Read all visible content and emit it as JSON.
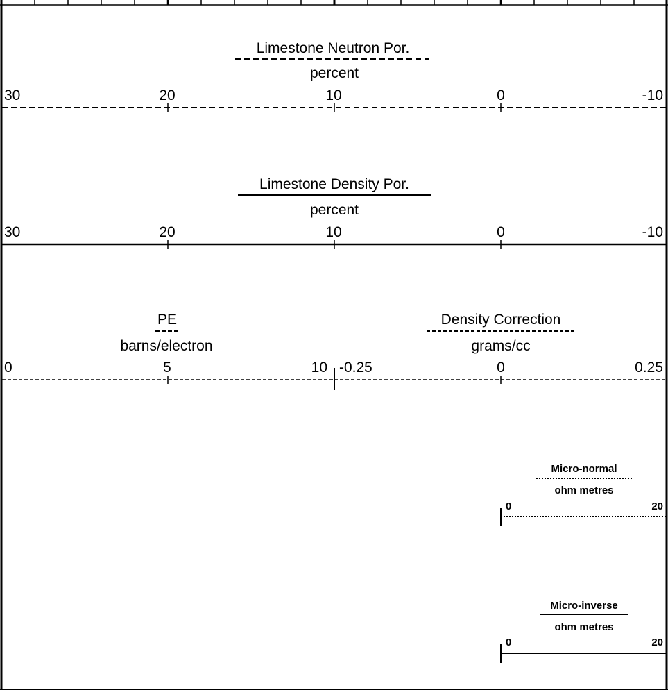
{
  "tracks": {
    "neutron": {
      "title": "Limestone Neutron Por.",
      "unit": "percent",
      "scale": [
        "30",
        "20",
        "10",
        "0",
        "-10"
      ],
      "line_style": "dashed"
    },
    "density": {
      "title": "Limestone Density Por.",
      "unit": "percent",
      "scale": [
        "30",
        "20",
        "10",
        "0",
        "-10"
      ],
      "line_style": "solid"
    },
    "pe": {
      "title": "PE",
      "unit": "barns/electron",
      "scale": [
        "0",
        "5",
        "10"
      ],
      "line_style": "short-dashed"
    },
    "density_correction": {
      "title": "Density Correction",
      "unit": "grams/cc",
      "scale": [
        "-0.25",
        "0",
        "0.25"
      ],
      "line_style": "short-dashed"
    },
    "micro_normal": {
      "title": "Micro-normal",
      "unit": "ohm metres",
      "scale": [
        "0",
        "20"
      ],
      "line_style": "dotted"
    },
    "micro_inverse": {
      "title": "Micro-inverse",
      "unit": "ohm metres",
      "scale": [
        "0",
        "20"
      ],
      "line_style": "solid"
    }
  }
}
